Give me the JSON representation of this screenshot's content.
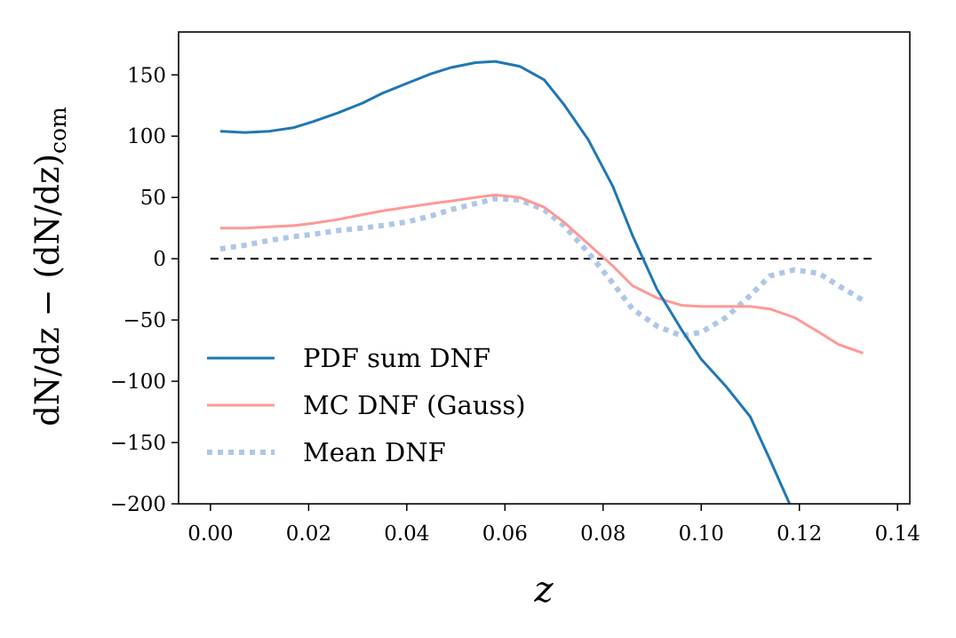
{
  "chart_data": {
    "type": "line",
    "title": "",
    "xlabel": "z",
    "ylabel": {
      "main": "dN/dz − (dN/dz)",
      "subscript": "com"
    },
    "xlim": [
      -0.0065,
      0.1425
    ],
    "ylim": [
      -200,
      185
    ],
    "xticks": [
      0.0,
      0.02,
      0.04,
      0.06,
      0.08,
      0.1,
      0.12,
      0.14
    ],
    "xtick_labels": [
      "0.00",
      "0.02",
      "0.04",
      "0.06",
      "0.08",
      "0.10",
      "0.12",
      "0.14"
    ],
    "yticks": [
      150,
      100,
      50,
      0,
      -50,
      -100,
      -150,
      -200
    ],
    "ytick_labels": [
      "150",
      "100",
      "50",
      "0",
      "−50",
      "−100",
      "−150",
      "−200"
    ],
    "grid": false,
    "legend_position": "lower-left",
    "reference_line": {
      "y": 0,
      "x_range": [
        0.0,
        0.1355
      ],
      "style": "dashed",
      "color": "#000000"
    },
    "series": [
      {
        "name": "PDF sum DNF",
        "color": "#1f77b4",
        "style": "solid",
        "x": [
          0.002,
          0.007,
          0.012,
          0.017,
          0.021,
          0.026,
          0.031,
          0.035,
          0.04,
          0.045,
          0.049,
          0.054,
          0.058,
          0.063,
          0.068,
          0.072,
          0.077,
          0.082,
          0.086,
          0.091,
          0.096,
          0.1,
          0.105,
          0.11,
          0.114,
          0.118
        ],
        "y": [
          104,
          103,
          104,
          107,
          112,
          119,
          127,
          135,
          143,
          151,
          156,
          160,
          161,
          157,
          146,
          126,
          97,
          59,
          19,
          -25,
          -58,
          -82,
          -104,
          -129,
          -164,
          -200
        ]
      },
      {
        "name": "MC DNF (Gauss)",
        "color": "#ff9896",
        "style": "solid",
        "x": [
          0.002,
          0.007,
          0.012,
          0.017,
          0.021,
          0.026,
          0.031,
          0.035,
          0.04,
          0.045,
          0.049,
          0.054,
          0.058,
          0.063,
          0.068,
          0.072,
          0.077,
          0.082,
          0.086,
          0.091,
          0.096,
          0.1,
          0.105,
          0.11,
          0.114,
          0.119,
          0.124,
          0.128,
          0.133
        ],
        "y": [
          25,
          25,
          26,
          27,
          29,
          32,
          36,
          39,
          42,
          45,
          47,
          50,
          52,
          50,
          42,
          30,
          12,
          -6,
          -22,
          -32,
          -38,
          -39,
          -39,
          -39,
          -41,
          -48,
          -60,
          -70,
          -77
        ]
      },
      {
        "name": "Mean DNF",
        "color": "#aec7e8",
        "style": "dotted",
        "x": [
          0.002,
          0.007,
          0.012,
          0.017,
          0.021,
          0.026,
          0.031,
          0.035,
          0.04,
          0.045,
          0.049,
          0.054,
          0.058,
          0.063,
          0.068,
          0.072,
          0.077,
          0.082,
          0.086,
          0.091,
          0.096,
          0.1,
          0.105,
          0.11,
          0.114,
          0.119,
          0.124,
          0.128,
          0.133
        ],
        "y": [
          8,
          11,
          15,
          18,
          20,
          23,
          25,
          27,
          30,
          35,
          40,
          45,
          49,
          48,
          40,
          27,
          5,
          -20,
          -41,
          -55,
          -63,
          -60,
          -48,
          -30,
          -14,
          -9,
          -12,
          -22,
          -34
        ]
      }
    ]
  }
}
